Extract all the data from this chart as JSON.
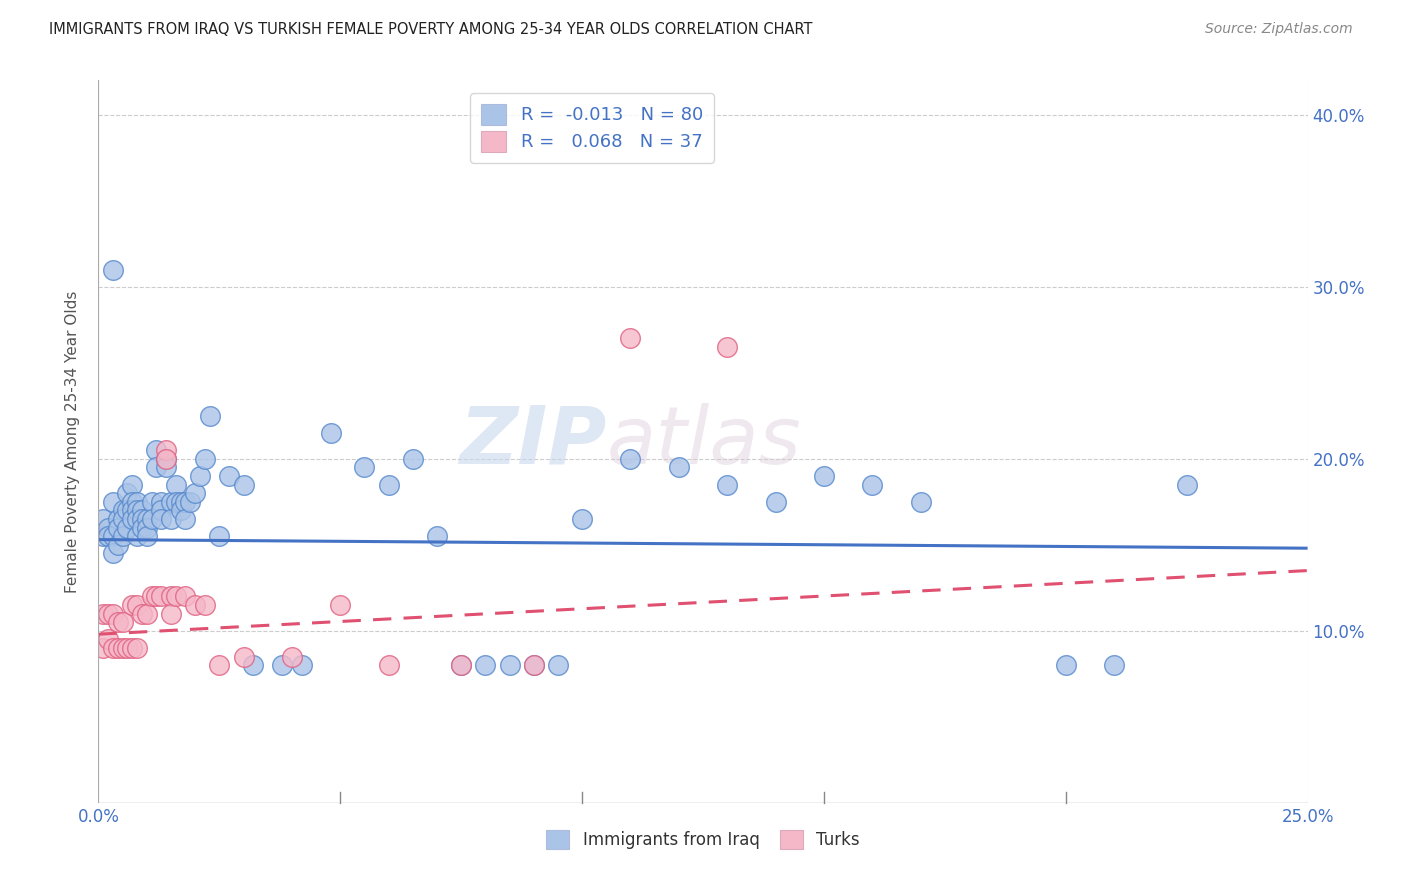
{
  "title": "IMMIGRANTS FROM IRAQ VS TURKISH FEMALE POVERTY AMONG 25-34 YEAR OLDS CORRELATION CHART",
  "source": "Source: ZipAtlas.com",
  "ylabel": "Female Poverty Among 25-34 Year Olds",
  "xlim": [
    0,
    0.25
  ],
  "ylim": [
    0,
    0.42
  ],
  "yticks": [
    0.1,
    0.2,
    0.3,
    0.4
  ],
  "ytick_labels": [
    "10.0%",
    "20.0%",
    "30.0%",
    "40.0%"
  ],
  "grid_color": "#cccccc",
  "background_color": "#ffffff",
  "iraq_color": "#aac4e8",
  "turk_color": "#f5b8c8",
  "iraq_edge_color": "#5588cc",
  "turk_edge_color": "#e06080",
  "iraq_line_color": "#4472c4",
  "turk_line_color": "#e05070",
  "R_iraq": -0.013,
  "N_iraq": 80,
  "R_turk": 0.068,
  "N_turk": 37,
  "legend_label1": "Immigrants from Iraq",
  "legend_label2": "Turks",
  "watermark_zip": "ZIP",
  "watermark_atlas": "atlas",
  "iraq_line_y0": 0.153,
  "iraq_line_y1": 0.148,
  "turk_line_y0": 0.098,
  "turk_line_y1": 0.135,
  "iraq_x": [
    0.001,
    0.001,
    0.002,
    0.002,
    0.003,
    0.003,
    0.003,
    0.004,
    0.004,
    0.004,
    0.005,
    0.005,
    0.005,
    0.006,
    0.006,
    0.006,
    0.007,
    0.007,
    0.007,
    0.007,
    0.008,
    0.008,
    0.008,
    0.008,
    0.009,
    0.009,
    0.009,
    0.01,
    0.01,
    0.01,
    0.011,
    0.011,
    0.012,
    0.012,
    0.013,
    0.013,
    0.013,
    0.014,
    0.014,
    0.015,
    0.015,
    0.016,
    0.016,
    0.017,
    0.017,
    0.018,
    0.018,
    0.019,
    0.02,
    0.021,
    0.022,
    0.023,
    0.025,
    0.027,
    0.03,
    0.032,
    0.038,
    0.042,
    0.048,
    0.055,
    0.06,
    0.065,
    0.07,
    0.075,
    0.08,
    0.085,
    0.09,
    0.095,
    0.1,
    0.11,
    0.12,
    0.13,
    0.14,
    0.15,
    0.16,
    0.17,
    0.2,
    0.21,
    0.225,
    0.003
  ],
  "iraq_y": [
    0.155,
    0.165,
    0.16,
    0.155,
    0.175,
    0.155,
    0.145,
    0.165,
    0.16,
    0.15,
    0.17,
    0.165,
    0.155,
    0.18,
    0.17,
    0.16,
    0.185,
    0.175,
    0.17,
    0.165,
    0.175,
    0.17,
    0.165,
    0.155,
    0.17,
    0.165,
    0.16,
    0.165,
    0.16,
    0.155,
    0.175,
    0.165,
    0.205,
    0.195,
    0.175,
    0.17,
    0.165,
    0.2,
    0.195,
    0.175,
    0.165,
    0.185,
    0.175,
    0.175,
    0.17,
    0.175,
    0.165,
    0.175,
    0.18,
    0.19,
    0.2,
    0.225,
    0.155,
    0.19,
    0.185,
    0.08,
    0.08,
    0.08,
    0.215,
    0.195,
    0.185,
    0.2,
    0.155,
    0.08,
    0.08,
    0.08,
    0.08,
    0.08,
    0.165,
    0.2,
    0.195,
    0.185,
    0.175,
    0.19,
    0.185,
    0.175,
    0.08,
    0.08,
    0.185,
    0.31
  ],
  "turk_x": [
    0.001,
    0.001,
    0.002,
    0.002,
    0.003,
    0.003,
    0.004,
    0.004,
    0.005,
    0.005,
    0.006,
    0.007,
    0.007,
    0.008,
    0.008,
    0.009,
    0.01,
    0.011,
    0.012,
    0.013,
    0.014,
    0.014,
    0.015,
    0.015,
    0.016,
    0.018,
    0.02,
    0.022,
    0.025,
    0.03,
    0.04,
    0.05,
    0.06,
    0.075,
    0.09,
    0.11,
    0.13
  ],
  "turk_y": [
    0.11,
    0.09,
    0.11,
    0.095,
    0.11,
    0.09,
    0.105,
    0.09,
    0.105,
    0.09,
    0.09,
    0.115,
    0.09,
    0.115,
    0.09,
    0.11,
    0.11,
    0.12,
    0.12,
    0.12,
    0.205,
    0.2,
    0.12,
    0.11,
    0.12,
    0.12,
    0.115,
    0.115,
    0.08,
    0.085,
    0.085,
    0.115,
    0.08,
    0.08,
    0.08,
    0.27,
    0.265
  ]
}
